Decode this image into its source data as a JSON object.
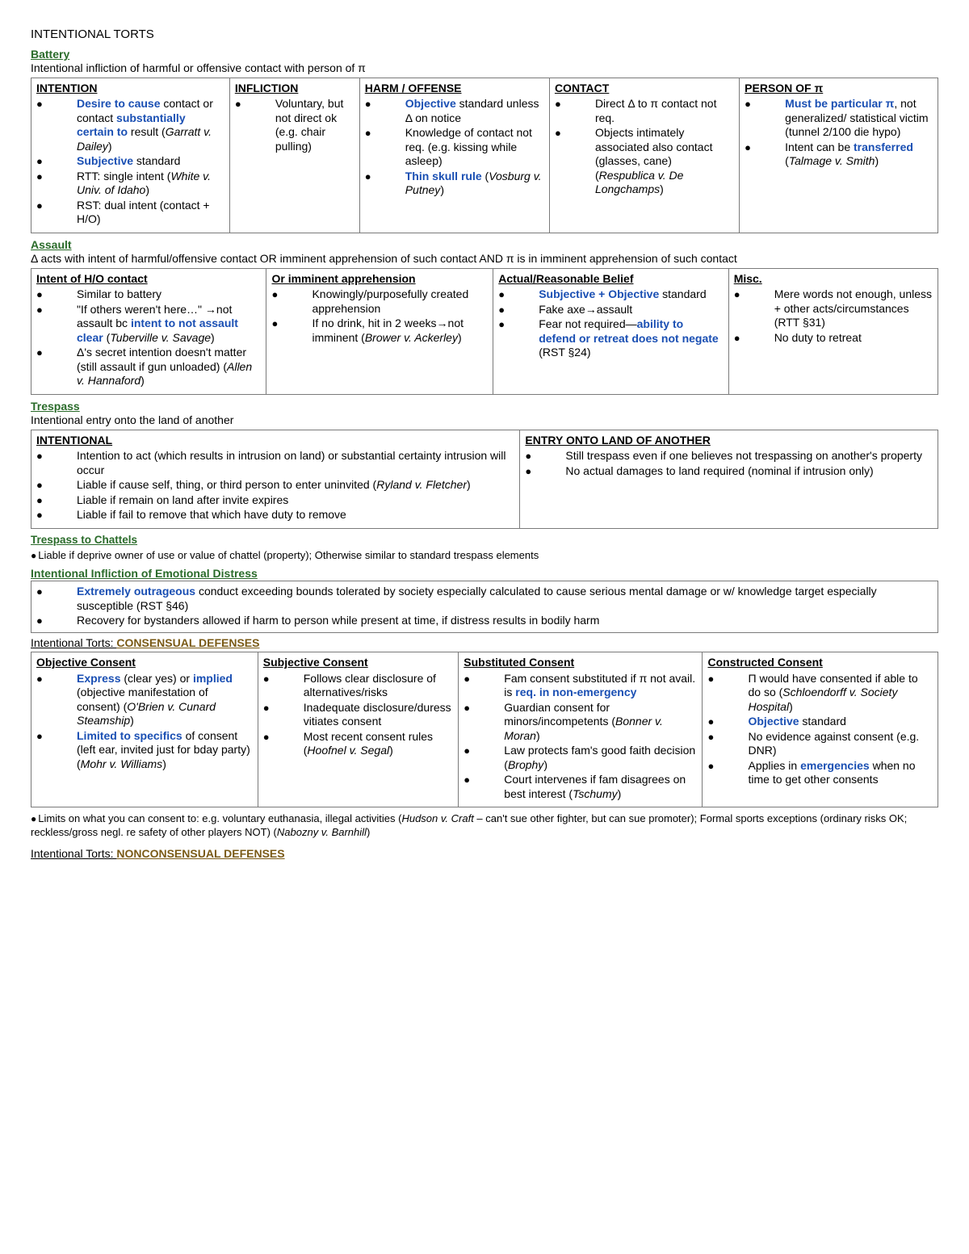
{
  "page_title": "INTENTIONAL TORTS",
  "battery": {
    "title": "Battery",
    "definition": "Intentional infliction of harmful or offensive contact with person of π",
    "cols": [
      {
        "head": "INTENTION",
        "items": [
          "<span class='blue'>Desire to cause</span> contact or contact <span class='blue'>substantially certain to</span> result (<span class='ital'>Garratt v. Dailey</span>)",
          "<span class='blue'>Subjective</span> standard",
          "RTT: single intent (<span class='ital'>White v. Univ. of Idaho</span>)",
          "RST: dual intent (contact + H/O)"
        ]
      },
      {
        "head": "INFLICTION",
        "items": [
          "Voluntary, but not direct ok (e.g. chair pulling)"
        ]
      },
      {
        "head": "HARM / OFFENSE",
        "items": [
          "<span class='blue'>Objective</span> standard unless Δ on notice",
          "Knowledge of contact not req. (e.g. kissing while asleep)",
          "<span class='blue'>Thin skull rule</span> (<span class='ital'>Vosburg v. Putney</span>)"
        ]
      },
      {
        "head": "CONTACT",
        "items": [
          "Direct Δ to π contact not req.",
          "Objects intimately associated also contact (glasses, cane) (<span class='ital'>Respublica v. De Longchamps</span>)"
        ]
      },
      {
        "head": "PERSON OF π",
        "items": [
          "<span class='blue'>Must be particular π</span>, not generalized/ statistical victim (tunnel 2/100 die hypo)",
          "Intent can be <span class='blue'>transferred</span> (<span class='ital'>Talmage v. Smith</span>)"
        ]
      }
    ]
  },
  "assault": {
    "title": "Assault",
    "definition": "Δ acts with intent of harmful/offensive contact OR imminent apprehension of such contact AND π is in imminent apprehension of such contact",
    "cols": [
      {
        "head": "Intent of H/O contact",
        "items": [
          "Similar to battery",
          "\"If others weren't here…\" →not assault bc <span class='blue'>intent to not assault clear</span> (<span class='ital'>Tuberville v. Savage</span>)",
          "Δ's secret intention doesn't matter (still assault if gun unloaded) (<span class='ital'>Allen v. Hannaford</span>)"
        ]
      },
      {
        "head": "Or imminent apprehension",
        "items": [
          "Knowingly/purposefully created apprehension",
          "If no drink, hit in 2 weeks→not imminent (<span class='ital'>Brower v. Ackerley</span>)"
        ]
      },
      {
        "head": "Actual/Reasonable Belief",
        "items": [
          "<span class='blue'>Subjective + Objective</span> standard",
          "Fake axe→assault",
          "Fear not required—<span class='blue'>ability to defend or retreat does not negate</span> (RST §24)"
        ]
      },
      {
        "head": "Misc.",
        "items": [
          "Mere words not enough, unless + other acts/circumstances (RTT §31)",
          "No duty to retreat"
        ]
      }
    ]
  },
  "trespass": {
    "title": "Trespass",
    "definition": "Intentional entry onto the land of another",
    "cols": [
      {
        "head": "INTENTIONAL",
        "items": [
          "Intention to act (which results in intrusion on land) or substantial certainty intrusion will occur",
          "Liable if cause self, thing, or third person to enter uninvited (<span class='ital'>Ryland v. Fletcher</span>)",
          "Liable if remain on land after invite expires",
          "Liable if fail to remove that which have duty to remove"
        ]
      },
      {
        "head": "ENTRY ONTO LAND OF ANOTHER",
        "items": [
          "Still trespass even if one believes not trespassing on another's property",
          "No actual damages to land required (nominal if intrusion only)"
        ]
      }
    ]
  },
  "chattels": {
    "title": "Trespass to Chattels",
    "note": "Liable if deprive owner of use or value of chattel (property); Otherwise similar to standard trespass elements"
  },
  "iied": {
    "title": "Intentional Infliction of Emotional Distress",
    "items": [
      "<span class='blue'>Extremely outrageous</span> conduct exceeding bounds tolerated by society especially calculated to cause serious mental damage or w/ knowledge target especially susceptible (RST §46)",
      "Recovery for bystanders allowed if harm to person while present at time, if distress results in bodily harm"
    ]
  },
  "consensual": {
    "prefix": "Intentional Torts: ",
    "label": "CONSENSUAL DEFENSES",
    "cols": [
      {
        "head": "Objective Consent",
        "items": [
          "<span class='blue'>Express</span> (clear yes) or <span class='blue'>implied</span> (objective manifestation of consent) (<span class='ital'>O'Brien v. Cunard Steamship</span>)",
          "<span class='blue'>Limited to specifics</span> of consent (left ear, invited just for bday party) (<span class='ital'>Mohr v. Williams</span>)"
        ]
      },
      {
        "head": "Subjective Consent",
        "items": [
          "Follows clear disclosure of alternatives/risks",
          "Inadequate disclosure/duress vitiates consent",
          "Most recent consent rules (<span class='ital'>Hoofnel v. Segal</span>)"
        ]
      },
      {
        "head": "Substituted Consent",
        "items": [
          "Fam consent substituted if π not avail. is <span class='blue'>req. in non-emergency</span>",
          "Guardian consent for minors/incompetents (<span class='ital'>Bonner v. Moran</span>)",
          "Law protects fam's good faith decision (<span class='ital'>Brophy</span>)",
          "Court intervenes if fam disagrees on best interest (<span class='ital'>Tschumy</span>)"
        ]
      },
      {
        "head": "Constructed Consent",
        "items": [
          "Π would have consented if able to do so (<span class='ital'>Schloendorff v. Society Hospital</span>)",
          "<span class='blue'>Objective</span> standard",
          "No evidence against consent (e.g. DNR)",
          "Applies in <span class='blue'>emergencies</span> when no time to get other consents"
        ]
      }
    ],
    "footnote": "Limits on what you can consent to: e.g. voluntary euthanasia, illegal activities (<span class='ital'>Hudson v. Craft</span> – can't sue other fighter, but can sue promoter); Formal sports exceptions (ordinary risks OK; reckless/gross negl. re safety of other players NOT) (<span class='ital'>Nabozny v. Barnhill</span>)"
  },
  "nonconsensual": {
    "prefix": "Intentional Torts: ",
    "label": "NONCONSENSUAL DEFENSES"
  }
}
